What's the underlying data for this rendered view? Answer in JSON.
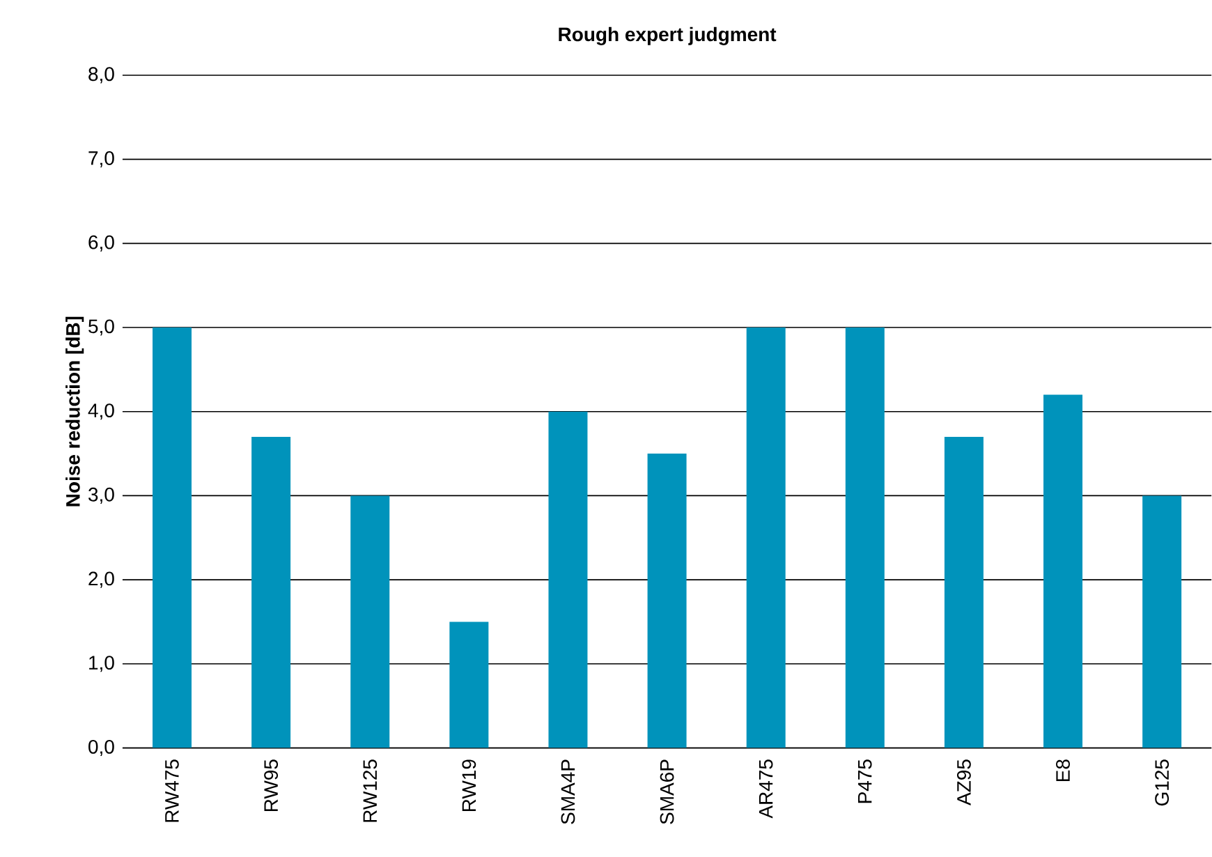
{
  "chart_data": {
    "type": "bar",
    "title": "Rough expert judgment",
    "ylabel": "Noise reduction [dB]",
    "categories": [
      "RW475",
      "RW95",
      "RW125",
      "RW19",
      "SMA4P",
      "SMA6P",
      "AR475",
      "P475",
      "AZ95",
      "E8",
      "G125"
    ],
    "values": [
      5.0,
      3.7,
      3.0,
      1.5,
      4.0,
      3.5,
      5.0,
      5.0,
      3.7,
      4.2,
      3.0
    ],
    "color": "#0093bb",
    "ylim": [
      0,
      8
    ],
    "yticks": [
      {
        "value": 0,
        "label": "0,0"
      },
      {
        "value": 1,
        "label": "1,0"
      },
      {
        "value": 2,
        "label": "2,0"
      },
      {
        "value": 3,
        "label": "3,0"
      },
      {
        "value": 4,
        "label": "4,0"
      },
      {
        "value": 5,
        "label": "5,0"
      },
      {
        "value": 6,
        "label": "6,0"
      },
      {
        "value": 7,
        "label": "7,0"
      },
      {
        "value": 8,
        "label": "8,0"
      }
    ],
    "grid": "y"
  }
}
